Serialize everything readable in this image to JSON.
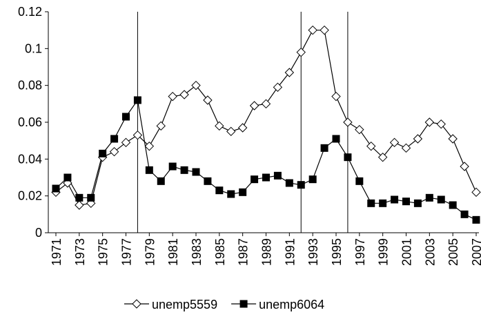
{
  "chart_data": {
    "type": "line",
    "x": [
      1971,
      1972,
      1973,
      1974,
      1975,
      1976,
      1977,
      1978,
      1979,
      1980,
      1981,
      1982,
      1983,
      1984,
      1985,
      1986,
      1987,
      1988,
      1989,
      1990,
      1991,
      1992,
      1993,
      1994,
      1995,
      1996,
      1997,
      1998,
      1999,
      2000,
      2001,
      2002,
      2003,
      2004,
      2005,
      2006,
      2007
    ],
    "series": [
      {
        "name": "unemp5559",
        "color": "#000000",
        "marker": "diamond",
        "values": [
          0.022,
          0.027,
          0.015,
          0.016,
          0.041,
          0.044,
          0.049,
          0.053,
          0.047,
          0.058,
          0.074,
          0.075,
          0.08,
          0.072,
          0.058,
          0.055,
          0.057,
          0.069,
          0.07,
          0.079,
          0.087,
          0.098,
          0.11,
          0.11,
          0.074,
          0.06,
          0.056,
          0.047,
          0.041,
          0.049,
          0.046,
          0.051,
          0.06,
          0.059,
          0.051,
          0.036,
          0.022
        ]
      },
      {
        "name": "unemp6064",
        "color": "#000000",
        "marker": "square",
        "values": [
          0.024,
          0.03,
          0.019,
          0.019,
          0.043,
          0.051,
          0.063,
          0.072,
          0.034,
          0.028,
          0.036,
          0.034,
          0.033,
          0.028,
          0.023,
          0.021,
          0.022,
          0.029,
          0.03,
          0.031,
          0.027,
          0.026,
          0.029,
          0.046,
          0.051,
          0.041,
          0.028,
          0.016,
          0.016,
          0.018,
          0.017,
          0.016,
          0.019,
          0.018,
          0.015,
          0.01,
          0.007
        ]
      }
    ],
    "xlim": [
      1971,
      2007
    ],
    "xticks": [
      1971,
      1973,
      1975,
      1977,
      1979,
      1981,
      1983,
      1985,
      1987,
      1989,
      1991,
      1993,
      1995,
      1997,
      1999,
      2001,
      2003,
      2005,
      2007
    ],
    "ylim": [
      0,
      0.12
    ],
    "yticks": [
      0,
      0.02,
      0.04,
      0.06,
      0.08,
      0.1,
      0.12
    ],
    "vlines": [
      1978,
      1992,
      1996
    ],
    "legend": "bottom"
  }
}
